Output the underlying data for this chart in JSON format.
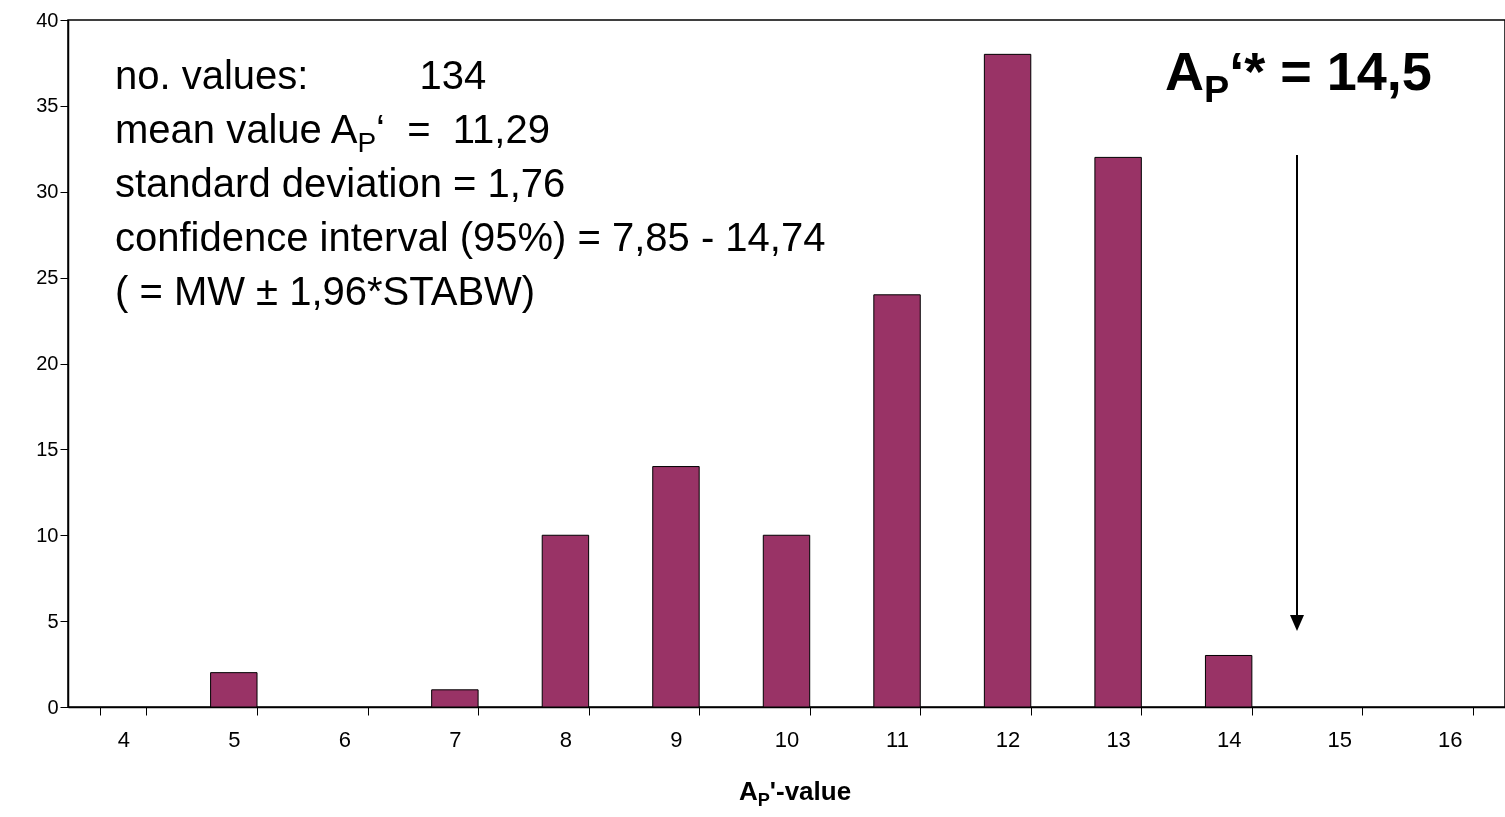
{
  "chart_data": {
    "type": "bar",
    "xlabel": "A$_{P}$'-value",
    "categories": [
      "4",
      "5",
      "6",
      "7",
      "8",
      "9",
      "10",
      "11",
      "12",
      "13",
      "14",
      "15",
      "16"
    ],
    "values": [
      0,
      2,
      0,
      1,
      10,
      14,
      10,
      24,
      38,
      32,
      3,
      0,
      0
    ],
    "color": "#993366",
    "ylim": [
      0,
      40
    ],
    "yticks": [
      0,
      5,
      10,
      15,
      20,
      25,
      30,
      35,
      40
    ],
    "grid": false,
    "annotations": [
      "no. values:          134",
      "mean value A$_{P}$‘  =  11,29",
      "standard deviation = 1,76",
      "confidence interval (95%) = 7,85 - 14,74",
      "( = MW ± 1,96*STABW)",
      "A$_{P}$‘* = 14,5"
    ]
  }
}
